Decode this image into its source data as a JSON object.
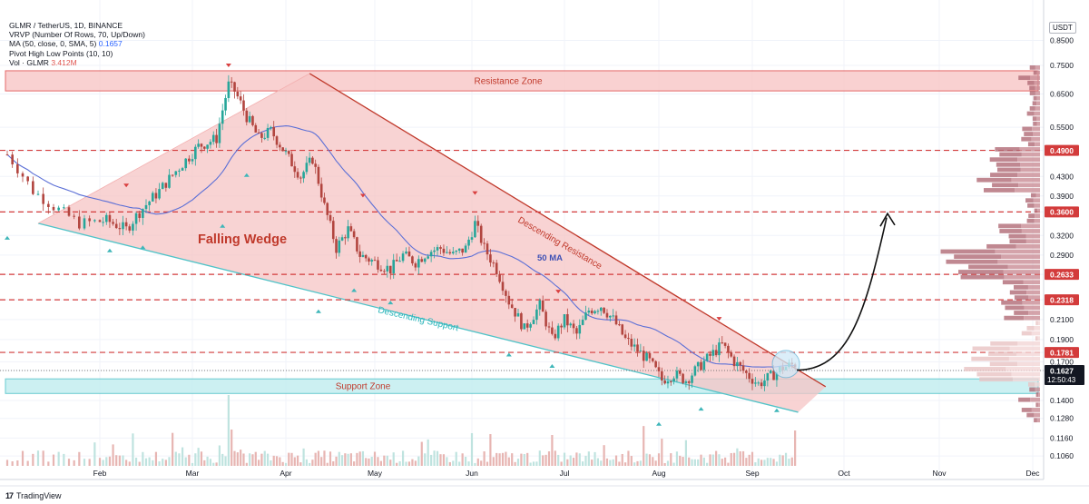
{
  "legend": {
    "symbol": "GLMR / TetherUS, 1D, BINANCE",
    "vrvp": "VRVP (Number Of Rows, 70, Up/Down)",
    "ma_label": "MA (50, close, 0, SMA, 5)",
    "ma_value": "0.1657",
    "pivot": "Pivot High Low Points (10, 10)",
    "vol_label": "Vol · GLMR",
    "vol_value": "3.412M"
  },
  "currency": "USDT",
  "footer": {
    "brand": "TradingView"
  },
  "colors": {
    "up": "#26a69a",
    "down": "#b2453f",
    "resistance": "#e05050",
    "support": "#4fc3c8",
    "ma": "#5b6fd6",
    "wedge_fill": "#f6c4c4"
  },
  "chart_data": {
    "type": "candlestick",
    "y_scale": "log",
    "x_tick_labels": [
      "Feb",
      "Mar",
      "Apr",
      "May",
      "Jun",
      "Jul",
      "Aug",
      "Sep",
      "Oct",
      "Nov",
      "Dec"
    ],
    "y_tick_labels": [
      "0.8500",
      "0.7500",
      "0.6500",
      "0.5500",
      "0.4900",
      "0.4300",
      "0.3900",
      "0.3600",
      "0.3200",
      "0.2900",
      "0.2633",
      "0.2318",
      "0.2100",
      "0.1900",
      "0.1781",
      "0.1700",
      "0.1627",
      "0.1400",
      "0.1280",
      "0.1160",
      "0.1060"
    ],
    "horizontal_levels": [
      {
        "value": 0.49,
        "label": "0.4900"
      },
      {
        "value": 0.36,
        "label": "0.3600"
      },
      {
        "value": 0.2633,
        "label": "0.2633"
      },
      {
        "value": 0.2318,
        "label": "0.2318"
      },
      {
        "value": 0.1781,
        "label": "0.1781"
      }
    ],
    "current_price": {
      "value": 0.1627,
      "label": "0.1627",
      "countdown": "12:50:43"
    },
    "zones": [
      {
        "name": "Resistance Zone",
        "low": 0.66,
        "high": 0.73
      },
      {
        "name": "Support Zone",
        "low": 0.145,
        "high": 0.156
      }
    ],
    "annotations": [
      {
        "text": "Falling Wedge"
      },
      {
        "text": "Descending Resistance"
      },
      {
        "text": "Descending Support"
      },
      {
        "text": "50 MA"
      }
    ]
  }
}
